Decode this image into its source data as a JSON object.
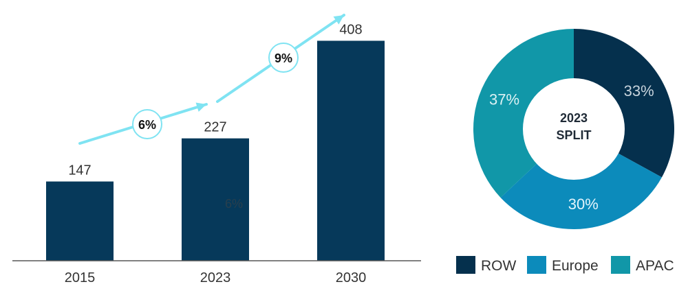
{
  "colors": {
    "bar": "#06395a",
    "arrow": "#7fe3f2",
    "axis": "#555555",
    "row": "#05304d",
    "europe": "#0c8bbb",
    "apac": "#1197a8",
    "donut_hole": "#ffffff"
  },
  "chart_data": [
    {
      "type": "bar",
      "categories": [
        "2015",
        "2023",
        "2030"
      ],
      "values": [
        147,
        227,
        408
      ],
      "value_labels": [
        "147",
        "227",
        "408"
      ],
      "ylim": [
        0,
        420
      ],
      "grid": false,
      "growth_rates": [
        "6%",
        "9%"
      ],
      "ghost_label": "6%"
    },
    {
      "type": "pie",
      "donut": true,
      "center_label": [
        "2023",
        "SPLIT"
      ],
      "slices": [
        {
          "name": "ROW",
          "value": 33,
          "label": "33%",
          "label_color": "#c7d3dc",
          "color_key": "row"
        },
        {
          "name": "Europe",
          "value": 30,
          "label": "30%",
          "label_color": "#e3f4fb",
          "color_key": "europe"
        },
        {
          "name": "APAC",
          "value": 37,
          "label": "37%",
          "label_color": "#ddf2f4",
          "color_key": "apac"
        }
      ],
      "legend_placement": "bottom"
    }
  ]
}
